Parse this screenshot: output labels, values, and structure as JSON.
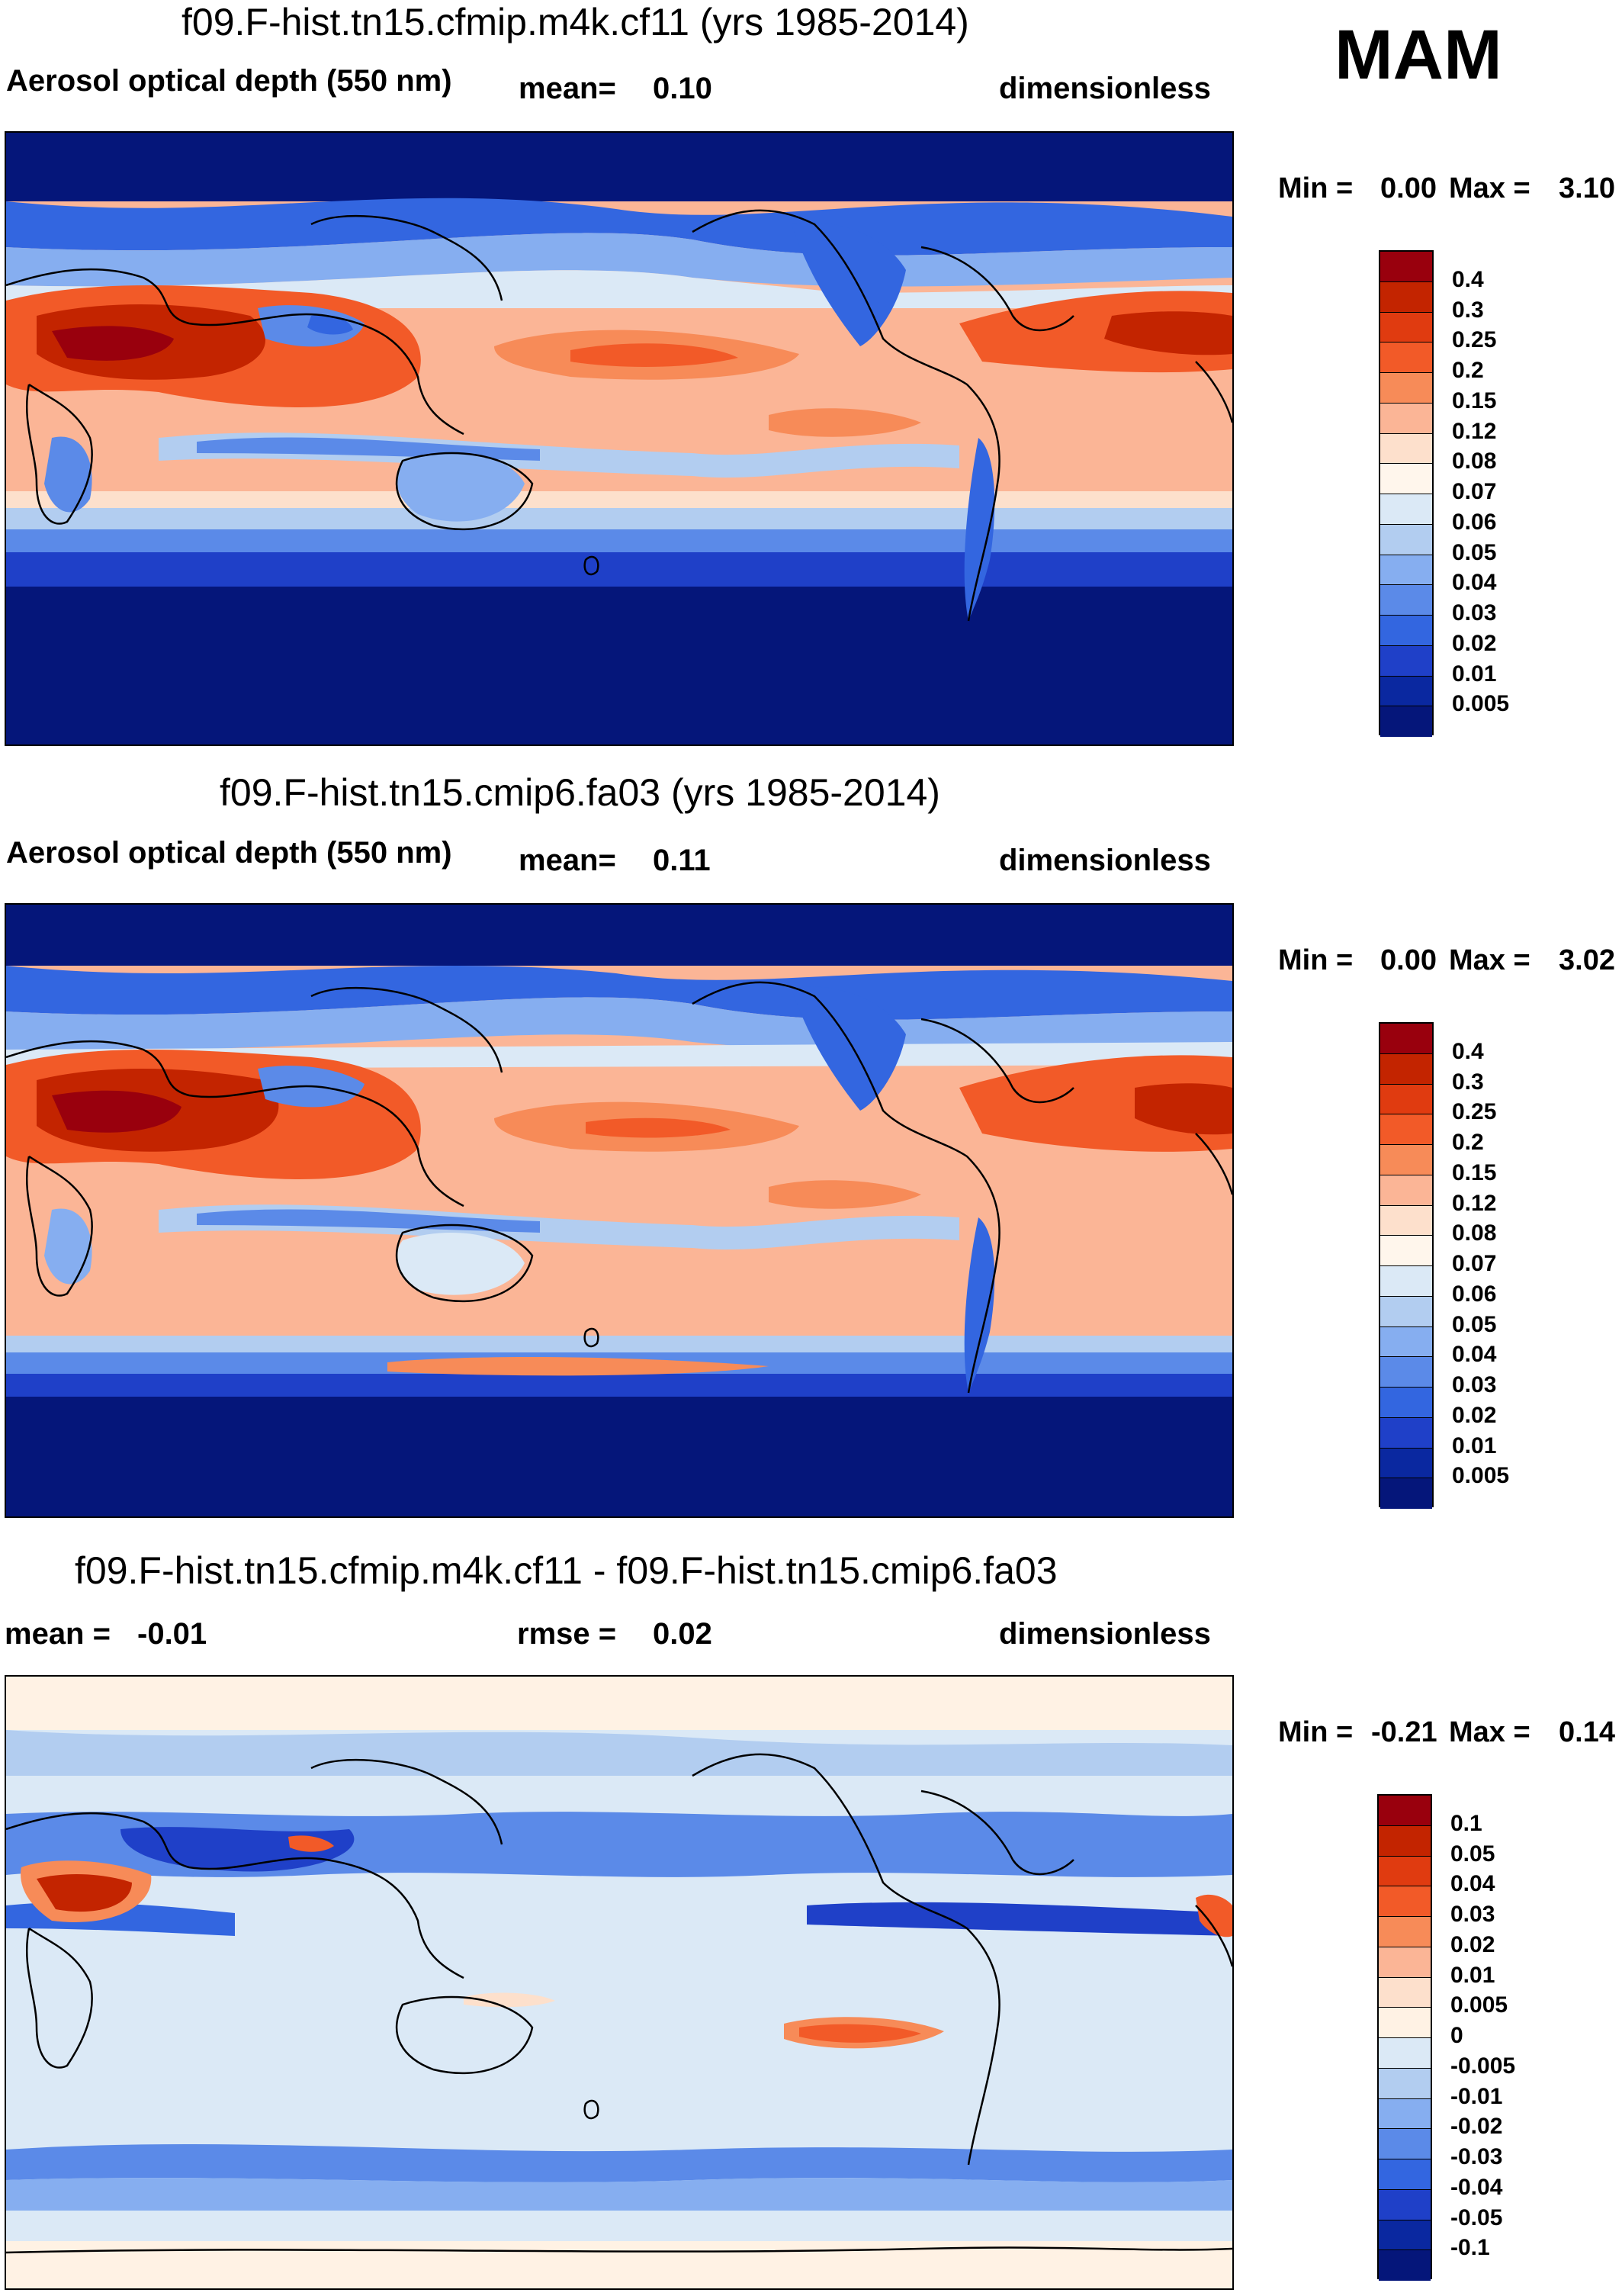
{
  "season": "MAM",
  "panels": [
    {
      "title": "f09.F-hist.tn15.cfmip.m4k.cf11 (yrs 1985-2014)",
      "left_label": "Aerosol optical depth (550 nm)",
      "mean_label": "mean=",
      "mean_value": "0.10",
      "units": "dimensionless",
      "min_label": "Min =",
      "min_value": "0.00",
      "max_label": "Max =",
      "max_value": "3.10",
      "levels": [
        "0.4",
        "0.3",
        "0.25",
        "0.2",
        "0.15",
        "0.12",
        "0.08",
        "0.07",
        "0.06",
        "0.05",
        "0.04",
        "0.03",
        "0.02",
        "0.01",
        "0.005"
      ],
      "colors": [
        "#99000d",
        "#c32400",
        "#e03b10",
        "#f25a28",
        "#f78b58",
        "#fbb596",
        "#fde0cc",
        "#fff6ec",
        "#dbe9f6",
        "#b2cdf0",
        "#86aef0",
        "#5b8ae8",
        "#3366e0",
        "#1f40c8",
        "#0a28a0",
        "#05167a"
      ]
    },
    {
      "title": "f09.F-hist.tn15.cmip6.fa03 (yrs 1985-2014)",
      "left_label": "Aerosol optical depth (550 nm)",
      "mean_label": "mean=",
      "mean_value": "0.11",
      "units": "dimensionless",
      "min_label": "Min =",
      "min_value": "0.00",
      "max_label": "Max =",
      "max_value": "3.02",
      "levels": [
        "0.4",
        "0.3",
        "0.25",
        "0.2",
        "0.15",
        "0.12",
        "0.08",
        "0.07",
        "0.06",
        "0.05",
        "0.04",
        "0.03",
        "0.02",
        "0.01",
        "0.005"
      ],
      "colors": [
        "#99000d",
        "#c32400",
        "#e03b10",
        "#f25a28",
        "#f78b58",
        "#fbb596",
        "#fde0cc",
        "#fff6ec",
        "#dbe9f6",
        "#b2cdf0",
        "#86aef0",
        "#5b8ae8",
        "#3366e0",
        "#1f40c8",
        "#0a28a0",
        "#05167a"
      ]
    },
    {
      "title": "f09.F-hist.tn15.cfmip.m4k.cf11 - f09.F-hist.tn15.cmip6.fa03",
      "left_label": "mean =",
      "mean_label": "",
      "mean_value": "-0.01",
      "rmse_label": "rmse =",
      "rmse_value": "0.02",
      "units": "dimensionless",
      "min_label": "Min =",
      "min_value": "-0.21",
      "max_label": "Max =",
      "max_value": "0.14",
      "levels": [
        "0.1",
        "0.05",
        "0.04",
        "0.03",
        "0.02",
        "0.01",
        "0.005",
        "0",
        "-0.005",
        "-0.01",
        "-0.02",
        "-0.03",
        "-0.04",
        "-0.05",
        "-0.1"
      ],
      "colors": [
        "#99000d",
        "#c32400",
        "#e03b10",
        "#f25a28",
        "#f78b58",
        "#fbb596",
        "#fde0cc",
        "#fff2e4",
        "#dbe9f6",
        "#b2cdf0",
        "#86aef0",
        "#5b8ae8",
        "#3366e0",
        "#1f40c8",
        "#0a28a0",
        "#05167a"
      ]
    }
  ]
}
